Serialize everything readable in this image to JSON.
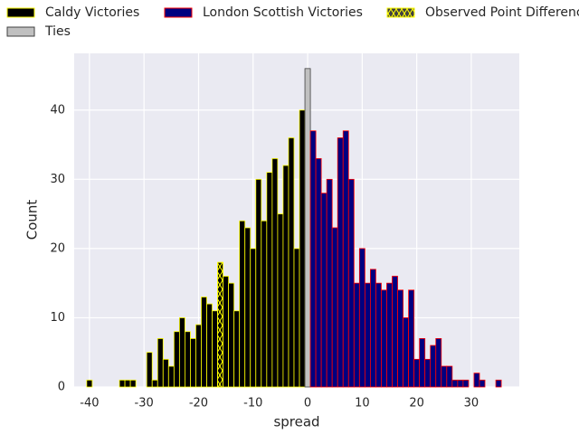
{
  "chart_data": {
    "type": "bar",
    "xlabel": "spread",
    "ylabel": "Count",
    "xlim": [
      -42.8,
      38.8
    ],
    "ylim": [
      0,
      48.2
    ],
    "xticks": [
      -40,
      -30,
      -20,
      -10,
      0,
      10,
      20,
      30
    ],
    "yticks": [
      0,
      10,
      20,
      30,
      40
    ],
    "grid": true,
    "background": "#eaeaf2",
    "series": [
      {
        "name": "Caldy Victories",
        "color": "#000000",
        "edgecolor": "#ffff00",
        "x": [
          -40,
          -34,
          -33,
          -32,
          -29,
          -28,
          -27,
          -26,
          -25,
          -24,
          -23,
          -22,
          -21,
          -20,
          -19,
          -18,
          -17,
          -16,
          -15,
          -14,
          -13,
          -12,
          -11,
          -10,
          -9,
          -8,
          -7,
          -6,
          -5,
          -4,
          -3,
          -2,
          -1
        ],
        "values": [
          1,
          1,
          1,
          1,
          5,
          1,
          7,
          4,
          3,
          8,
          10,
          8,
          7,
          9,
          13,
          12,
          11,
          18,
          16,
          15,
          11,
          24,
          23,
          20,
          30,
          24,
          31,
          33,
          25,
          32,
          36,
          20,
          40
        ]
      },
      {
        "name": "Ties",
        "color": "#c0c0c0",
        "edgecolor": "#404040",
        "x": [
          0
        ],
        "values": [
          46
        ]
      },
      {
        "name": "London Scottish Victories",
        "color": "#000080",
        "edgecolor": "#ff0000",
        "x": [
          1,
          2,
          3,
          4,
          5,
          6,
          7,
          8,
          9,
          10,
          11,
          12,
          13,
          14,
          15,
          16,
          17,
          18,
          19,
          20,
          21,
          22,
          23,
          24,
          25,
          26,
          27,
          28,
          29,
          31,
          32,
          35
        ],
        "values": [
          37,
          33,
          28,
          30,
          23,
          36,
          37,
          30,
          15,
          20,
          15,
          17,
          15,
          14,
          15,
          16,
          14,
          10,
          14,
          4,
          7,
          4,
          6,
          7,
          3,
          3,
          1,
          1,
          1,
          2,
          1,
          1
        ]
      },
      {
        "name": "Observed Point Difference",
        "color": "#404040",
        "edgecolor": "#ffff00",
        "hatch": true,
        "x": [
          -16
        ],
        "values": [
          18
        ]
      }
    ]
  }
}
